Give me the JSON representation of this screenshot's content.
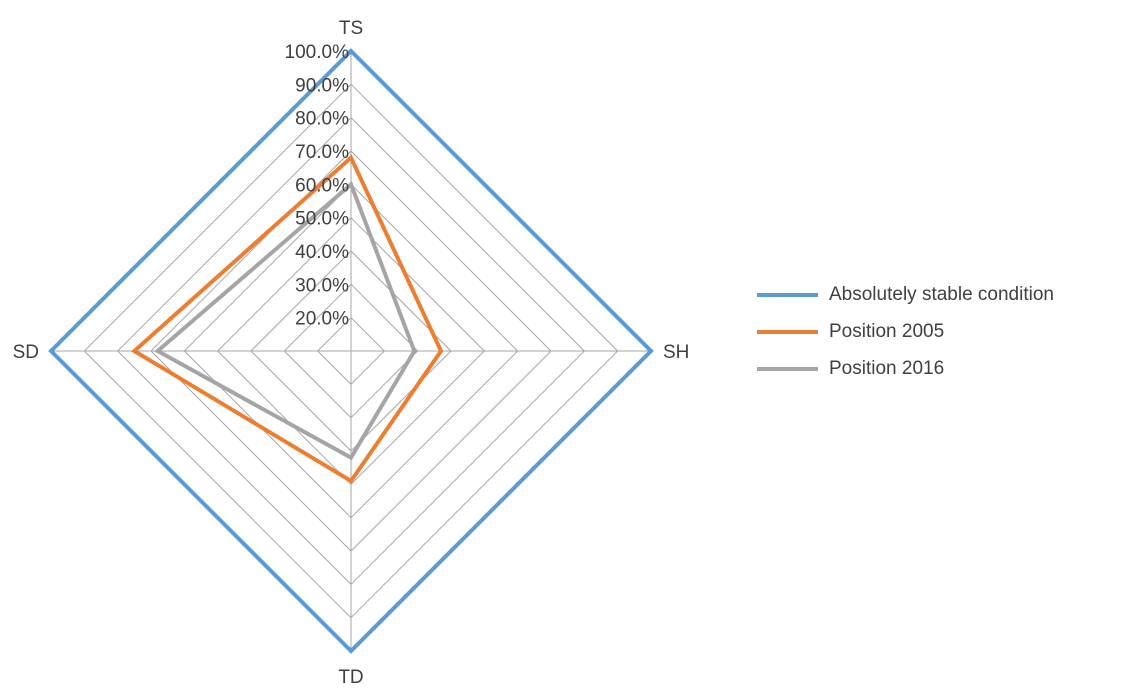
{
  "chart_data": {
    "type": "radar",
    "axes": [
      "TS",
      "SH",
      "TD",
      "SD"
    ],
    "rticks": [
      "20.0%",
      "30.0%",
      "40.0%",
      "50.0%",
      "60.0%",
      "70.0%",
      "80.0%",
      "90.0%",
      "100.0%"
    ],
    "rlim": [
      10,
      100
    ],
    "grid": true,
    "legend_position": "right",
    "series": [
      {
        "name": "Absolutely stable condition",
        "color": "#5B9BD5",
        "values": [
          100,
          100,
          100,
          100
        ]
      },
      {
        "name": "Position 2005",
        "color": "#ED7D31",
        "values": [
          68,
          37,
          49,
          75
        ]
      },
      {
        "name": "Position 2016",
        "color": "#A5A5A5",
        "values": [
          60,
          29,
          42,
          68
        ]
      }
    ],
    "grid_color": "#A6A6A6"
  }
}
